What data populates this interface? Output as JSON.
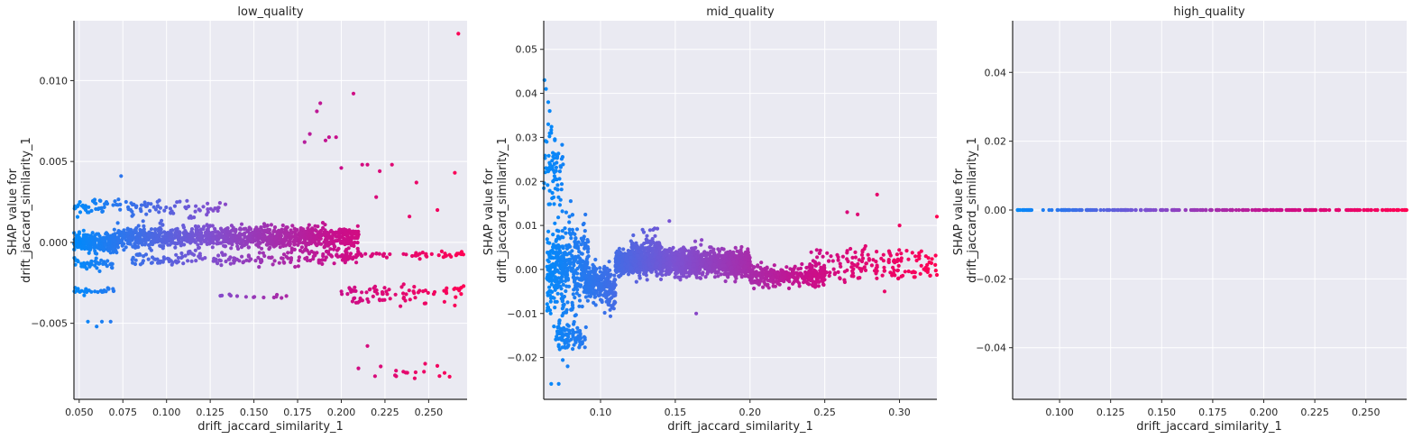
{
  "figure": {
    "background": "#ffffff",
    "axes_background": "#eaeaf2",
    "grid_color": "#ffffff",
    "spine_color": "#262626"
  },
  "colormap": [
    "#008afb",
    "#7c52d2",
    "#c80f8c",
    "#ff0052"
  ],
  "chart_data": [
    {
      "type": "scatter",
      "title": "low_quality",
      "xlabel": "drift_jaccard_similarity_1",
      "ylabel": [
        "SHAP value for",
        "drift_jaccard_similarity_1"
      ],
      "xlim": [
        0.047,
        0.272
      ],
      "ylim": [
        -0.0097,
        0.0137
      ],
      "xticks": [
        0.05,
        0.075,
        0.1,
        0.125,
        0.15,
        0.175,
        0.2,
        0.225,
        0.25
      ],
      "xtick_labels": [
        "0.050",
        "0.075",
        "0.100",
        "0.125",
        "0.150",
        "0.175",
        "0.200",
        "0.225",
        "0.250"
      ],
      "yticks": [
        -0.005,
        0.0,
        0.005,
        0.01
      ],
      "ytick_labels": [
        "−0.005",
        "0.000",
        "0.005",
        "0.010"
      ],
      "grid": true,
      "color_by": "x",
      "point_groups": [
        {
          "x_range": [
            0.047,
            0.072
          ],
          "y_center": 0.0,
          "spread": 0.0005,
          "count": 260
        },
        {
          "x_range": [
            0.072,
            0.21
          ],
          "y_center": 0.0003,
          "spread": 0.0006,
          "count": 1100
        },
        {
          "x_range": [
            0.047,
            0.095
          ],
          "y_center": 0.0022,
          "spread": 0.0004,
          "count": 70
        },
        {
          "x_range": [
            0.095,
            0.135
          ],
          "y_center": 0.0021,
          "spread": 0.0005,
          "count": 40
        },
        {
          "x_range": [
            0.047,
            0.07
          ],
          "y_center": -0.0013,
          "spread": 0.0003,
          "count": 40
        },
        {
          "x_range": [
            0.08,
            0.21
          ],
          "y_center": -0.001,
          "spread": 0.0004,
          "count": 170
        },
        {
          "x_range": [
            0.047,
            0.07
          ],
          "y_center": -0.003,
          "spread": 0.0002,
          "count": 30
        },
        {
          "x_range": [
            0.13,
            0.17
          ],
          "y_center": -0.0034,
          "spread": 0.0002,
          "count": 14
        },
        {
          "x_range": [
            0.2,
            0.27
          ],
          "y_center": -0.0008,
          "spread": 0.0002,
          "count": 60
        },
        {
          "x_range": [
            0.2,
            0.27
          ],
          "y_center": -0.003,
          "spread": 0.0003,
          "count": 55
        },
        {
          "x_range": [
            0.205,
            0.26
          ],
          "y_center": -0.0036,
          "spread": 0.0003,
          "count": 25
        },
        {
          "x_range": [
            0.205,
            0.26
          ],
          "y_center": -0.008,
          "spread": 0.0004,
          "count": 14
        }
      ],
      "points": [
        [
          0.055,
          -0.0049
        ],
        [
          0.06,
          -0.0052
        ],
        [
          0.063,
          -0.0049
        ],
        [
          0.068,
          -0.0049
        ],
        [
          0.074,
          0.0041
        ],
        [
          0.179,
          0.0062
        ],
        [
          0.182,
          0.0067
        ],
        [
          0.186,
          0.0081
        ],
        [
          0.188,
          0.0086
        ],
        [
          0.191,
          0.0063
        ],
        [
          0.193,
          0.0065
        ],
        [
          0.197,
          0.0065
        ],
        [
          0.207,
          0.0092
        ],
        [
          0.2,
          0.0046
        ],
        [
          0.212,
          0.0048
        ],
        [
          0.215,
          0.0048
        ],
        [
          0.222,
          0.0044
        ],
        [
          0.229,
          0.0048
        ],
        [
          0.22,
          0.0028
        ],
        [
          0.243,
          0.0037
        ],
        [
          0.239,
          0.0016
        ],
        [
          0.255,
          0.002
        ],
        [
          0.265,
          0.0043
        ],
        [
          0.267,
          0.0129
        ],
        [
          0.265,
          -0.0039
        ],
        [
          0.27,
          -0.0027
        ],
        [
          0.215,
          -0.0064
        ],
        [
          0.242,
          -0.0084
        ],
        [
          0.262,
          -0.0083
        ],
        [
          0.248,
          -0.0075
        ]
      ]
    },
    {
      "type": "scatter",
      "title": "mid_quality",
      "xlabel": "drift_jaccard_similarity_1",
      "ylabel": [
        "SHAP value for",
        "drift_jaccard_similarity_1"
      ],
      "xlim": [
        0.062,
        0.325
      ],
      "ylim": [
        -0.0295,
        0.0565
      ],
      "xticks": [
        0.1,
        0.15,
        0.2,
        0.25,
        0.3
      ],
      "xtick_labels": [
        "0.10",
        "0.15",
        "0.20",
        "0.25",
        "0.30"
      ],
      "yticks": [
        -0.02,
        -0.01,
        0.0,
        0.01,
        0.02,
        0.03,
        0.04,
        0.05
      ],
      "ytick_labels": [
        "−0.02",
        "−0.01",
        "0.00",
        "0.01",
        "0.02",
        "0.03",
        "0.04",
        "0.05"
      ],
      "grid": true,
      "color_by": "x",
      "point_groups": [
        {
          "x_range": [
            0.062,
            0.075
          ],
          "y_center": 0.022,
          "spread": 0.009,
          "count": 70
        },
        {
          "x_range": [
            0.064,
            0.092
          ],
          "y_center": 0.0,
          "spread": 0.009,
          "count": 420
        },
        {
          "x_range": [
            0.07,
            0.09
          ],
          "y_center": -0.015,
          "spread": 0.003,
          "count": 90
        },
        {
          "x_range": [
            0.09,
            0.1
          ],
          "y_center": -0.003,
          "spread": 0.004,
          "count": 120
        },
        {
          "x_range": [
            0.1,
            0.11
          ],
          "y_center": -0.004,
          "spread": 0.004,
          "count": 120
        },
        {
          "x_range": [
            0.11,
            0.2
          ],
          "y_center": 0.0015,
          "spread": 0.0025,
          "count": 1700
        },
        {
          "x_range": [
            0.12,
            0.14
          ],
          "y_center": 0.004,
          "spread": 0.0035,
          "count": 160
        },
        {
          "x_range": [
            0.2,
            0.25
          ],
          "y_center": -0.0015,
          "spread": 0.002,
          "count": 320
        },
        {
          "x_range": [
            0.24,
            0.325
          ],
          "y_center": 0.001,
          "spread": 0.0035,
          "count": 170
        }
      ],
      "points": [
        [
          0.0625,
          0.043
        ],
        [
          0.0635,
          0.041
        ],
        [
          0.065,
          0.038
        ],
        [
          0.066,
          0.036
        ],
        [
          0.065,
          0.033
        ],
        [
          0.067,
          0.031
        ],
        [
          0.064,
          0.029
        ],
        [
          0.067,
          -0.026
        ],
        [
          0.072,
          -0.026
        ],
        [
          0.078,
          -0.022
        ],
        [
          0.146,
          0.011
        ],
        [
          0.164,
          -0.01
        ],
        [
          0.285,
          0.017
        ],
        [
          0.265,
          0.013
        ],
        [
          0.3,
          0.01
        ],
        [
          0.325,
          0.012
        ],
        [
          0.272,
          0.0125
        ],
        [
          0.29,
          -0.005
        ]
      ]
    },
    {
      "type": "scatter",
      "title": "high_quality",
      "xlabel": "drift_jaccard_similarity_1",
      "ylabel": [
        "SHAP value for",
        "drift_jaccard_similarity_1"
      ],
      "xlim": [
        0.077,
        0.27
      ],
      "ylim": [
        -0.055,
        0.055
      ],
      "xticks": [
        0.1,
        0.125,
        0.15,
        0.175,
        0.2,
        0.225,
        0.25
      ],
      "xtick_labels": [
        "0.100",
        "0.125",
        "0.150",
        "0.175",
        "0.200",
        "0.225",
        "0.250"
      ],
      "yticks": [
        -0.04,
        -0.02,
        0.0,
        0.02,
        0.04
      ],
      "ytick_labels": [
        "−0.04",
        "−0.02",
        "0.00",
        "0.02",
        "0.04"
      ],
      "grid": true,
      "color_by": "x",
      "point_groups": [
        {
          "x_range": [
            0.077,
            0.27
          ],
          "y_center": 0.0,
          "spread": 0.0,
          "count": 260
        }
      ],
      "points": []
    }
  ]
}
